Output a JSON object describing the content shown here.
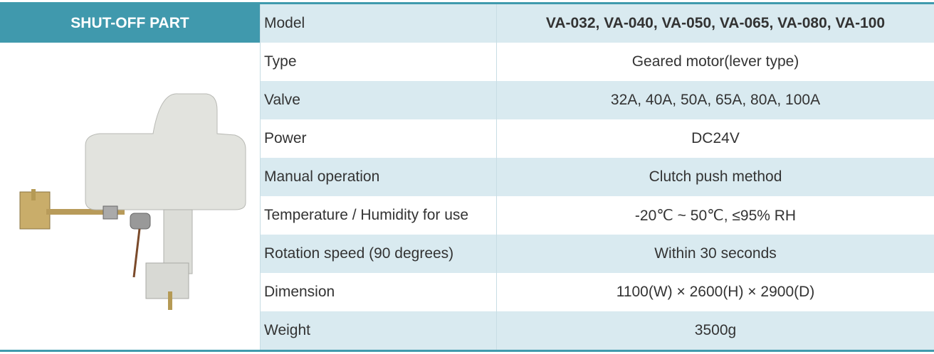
{
  "header": {
    "title": "SHUT-OFF PART"
  },
  "table": {
    "rows": [
      [
        "Model",
        "VA-032, VA-040, VA-050, VA-065, VA-080, VA-100"
      ],
      [
        "Type",
        "Geared motor(lever type)"
      ],
      [
        "Valve",
        "32A, 40A, 50A, 65A, 80A, 100A"
      ],
      [
        "Power",
        "DC24V"
      ],
      [
        "Manual operation",
        "Clutch push method"
      ],
      [
        "Temperature / Humidity for use",
        "-20℃ ~ 50℃, ≤95% RH"
      ],
      [
        "Rotation speed (90 degrees)",
        "Within 30 seconds"
      ],
      [
        "Dimension",
        "1100(W) × 2600(H) × 2900(D)"
      ],
      [
        "Weight",
        "3500g"
      ]
    ]
  }
}
